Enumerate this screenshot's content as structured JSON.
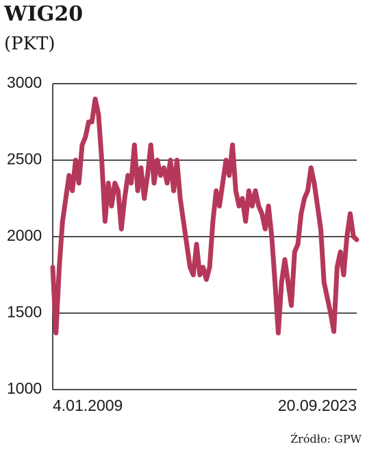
{
  "chart_data": {
    "type": "line",
    "title": "WIG20",
    "subtitle": "(PKT)",
    "source": "Źródło: GPW",
    "categories": [
      "4.01.2009",
      null,
      null,
      null,
      null,
      null,
      null,
      null,
      null,
      null,
      null,
      null,
      null,
      null,
      null,
      null,
      null,
      null,
      null,
      null,
      null,
      null,
      null,
      null,
      null,
      null,
      null,
      null,
      null,
      null,
      null,
      null,
      null,
      null,
      null,
      null,
      null,
      null,
      null,
      null,
      null,
      null,
      null,
      null,
      null,
      null,
      null,
      null,
      null,
      null,
      null,
      null,
      null,
      null,
      null,
      null,
      null,
      null,
      null,
      null,
      null,
      null,
      null,
      null,
      null,
      null,
      null,
      null,
      null,
      null,
      null,
      null,
      null,
      null,
      null,
      null,
      null,
      null,
      null,
      null,
      null,
      null,
      null,
      null,
      null,
      null,
      null,
      null,
      null,
      null,
      null,
      null,
      null,
      "20.09.2023"
    ],
    "values": [
      1800,
      1370,
      1800,
      2100,
      2250,
      2400,
      2300,
      2500,
      2350,
      2600,
      2650,
      2750,
      2750,
      2900,
      2800,
      2500,
      2100,
      2350,
      2200,
      2350,
      2300,
      2050,
      2250,
      2400,
      2350,
      2600,
      2300,
      2450,
      2250,
      2400,
      2600,
      2350,
      2500,
      2400,
      2450,
      2350,
      2500,
      2300,
      2500,
      2250,
      2100,
      1950,
      1800,
      1750,
      1950,
      1750,
      1800,
      1720,
      1800,
      2100,
      2300,
      2200,
      2350,
      2500,
      2400,
      2600,
      2300,
      2200,
      2250,
      2100,
      2300,
      2200,
      2300,
      2200,
      2150,
      2050,
      2200,
      2000,
      1700,
      1370,
      1700,
      1850,
      1700,
      1550,
      1900,
      1950,
      2150,
      2250,
      2300,
      2450,
      2350,
      2200,
      2050,
      1700,
      1600,
      1500,
      1380,
      1800,
      1900,
      1750,
      2000,
      2150,
      2000,
      1980
    ],
    "color": "#b5385a",
    "ylim": [
      1000,
      3000
    ],
    "yticks": [
      1000,
      1500,
      2000,
      2500,
      3000
    ],
    "grid": true
  }
}
